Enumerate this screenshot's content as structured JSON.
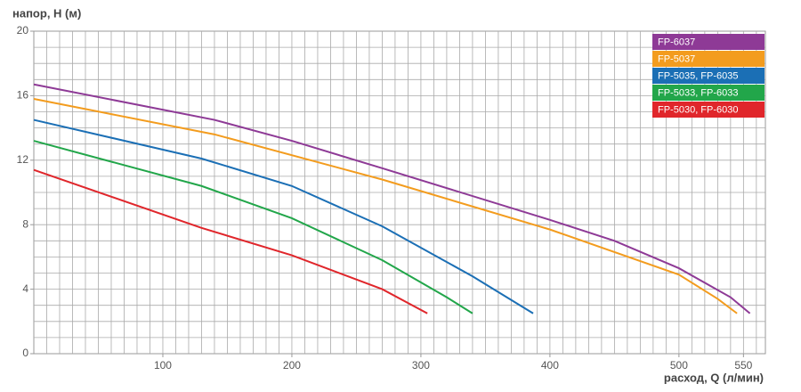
{
  "chart_data": {
    "type": "line",
    "y_label": "напор, H (м)",
    "x_label": "расход, Q (л/мин)",
    "xlim": [
      0,
      567
    ],
    "ylim": [
      0,
      20
    ],
    "xticks": [
      100,
      200,
      300,
      400,
      500,
      550
    ],
    "yticks": [
      0,
      4,
      8,
      12,
      16,
      20
    ],
    "grid": true,
    "x_grid_step": 10,
    "y_grid_step": 1,
    "legend": "top-right",
    "series": [
      {
        "name": "FP-6037",
        "color": "#8e3a96",
        "x": [
          0,
          140,
          200,
          270,
          400,
          450,
          500,
          540,
          555
        ],
        "values": [
          16.7,
          14.5,
          13.2,
          11.5,
          8.3,
          7.0,
          5.3,
          3.5,
          2.5
        ]
      },
      {
        "name": "FP-5037",
        "color": "#f39c1e",
        "x": [
          0,
          140,
          270,
          400,
          500,
          530,
          545
        ],
        "values": [
          15.8,
          13.6,
          10.8,
          7.7,
          4.9,
          3.4,
          2.5
        ]
      },
      {
        "name": "FP-5035, FP-6035",
        "color": "#1b6fb5",
        "x": [
          0,
          130,
          200,
          270,
          340,
          387
        ],
        "values": [
          14.5,
          12.1,
          10.4,
          7.9,
          4.8,
          2.5
        ]
      },
      {
        "name": "FP-5033, FP-6033",
        "color": "#22a64a",
        "x": [
          0,
          130,
          200,
          270,
          320,
          340
        ],
        "values": [
          13.2,
          10.4,
          8.4,
          5.8,
          3.5,
          2.5
        ]
      },
      {
        "name": "FP-5030, FP-6030",
        "color": "#e0262b",
        "x": [
          0,
          130,
          200,
          270,
          305
        ],
        "values": [
          11.4,
          7.8,
          6.1,
          4.0,
          2.5
        ]
      }
    ]
  }
}
